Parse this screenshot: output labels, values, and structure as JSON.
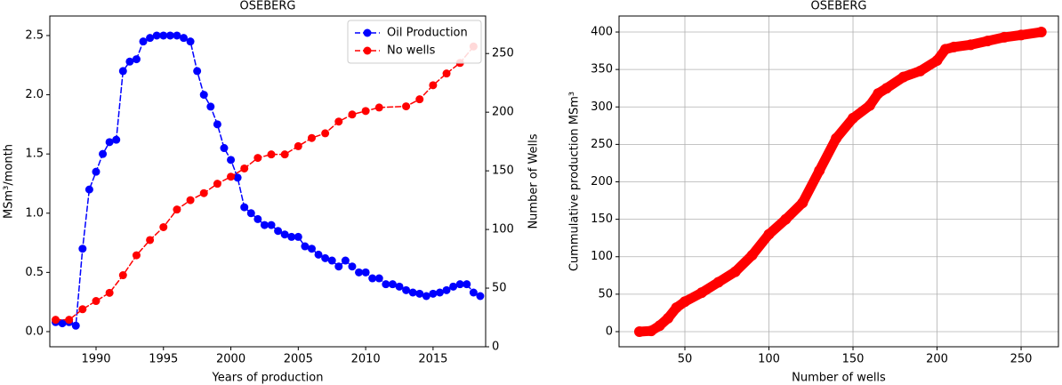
{
  "chart_data": [
    {
      "type": "line",
      "title": "OSEBERG",
      "xlabel": "Years of production",
      "ylabel": "MSm³/month",
      "y2label": "Number of Wells",
      "xlim": [
        1986.57,
        2018.9
      ],
      "xticks": [
        1990,
        1995,
        2000,
        2005,
        2010,
        2015
      ],
      "ylim": [
        -0.128,
        2.665
      ],
      "yticks": [
        {
          "value": 0,
          "label": "0.0"
        },
        {
          "value": 0.5,
          "label": "0.5"
        },
        {
          "value": 1,
          "label": "1.0"
        },
        {
          "value": 1.5,
          "label": "1.5"
        },
        {
          "value": 2,
          "label": "2.0"
        },
        {
          "value": 2.5,
          "label": "2.5"
        }
      ],
      "y2lim": [
        0,
        282
      ],
      "y2ticks": [
        0,
        50,
        100,
        150,
        200,
        250
      ],
      "grid": false,
      "legend": "upper right",
      "series": [
        {
          "name": "Oil Production",
          "color": "#0000ff",
          "linestyle": "dashed",
          "linewidth": 1.5,
          "x": [
            1987,
            1987.5,
            1988,
            1988.5,
            1989,
            1989.5,
            1990,
            1990.5,
            1991,
            1991.5,
            1992,
            1992.5,
            1993,
            1993.5,
            1994,
            1994.5,
            1995,
            1995.5,
            1996,
            1996.5,
            1997,
            1997.5,
            1998,
            1998.5,
            1999,
            1999.5,
            2000,
            2000.5,
            2001,
            2001.5,
            2002,
            2002.5,
            2003,
            2003.5,
            2004,
            2004.5,
            2005,
            2005.5,
            2006,
            2006.5,
            2007,
            2007.5,
            2008,
            2008.5,
            2009,
            2009.5,
            2010,
            2010.5,
            2011,
            2011.5,
            2012,
            2012.5,
            2013,
            2013.5,
            2014,
            2014.5,
            2015,
            2015.5,
            2016,
            2016.5,
            2017,
            2017.5,
            2018,
            2018.5
          ],
          "values": [
            0.08,
            0.07,
            0.08,
            0.05,
            0.7,
            1.2,
            1.35,
            1.5,
            1.6,
            1.62,
            2.2,
            2.28,
            2.3,
            2.45,
            2.48,
            2.5,
            2.5,
            2.5,
            2.5,
            2.48,
            2.45,
            2.2,
            2.0,
            1.9,
            1.75,
            1.55,
            1.45,
            1.3,
            1.05,
            1.0,
            0.95,
            0.9,
            0.9,
            0.85,
            0.82,
            0.8,
            0.8,
            0.72,
            0.7,
            0.65,
            0.62,
            0.6,
            0.55,
            0.6,
            0.55,
            0.5,
            0.5,
            0.45,
            0.45,
            0.4,
            0.4,
            0.38,
            0.35,
            0.33,
            0.32,
            0.3,
            0.32,
            0.33,
            0.35,
            0.38,
            0.4,
            0.4,
            0.33,
            0.3
          ]
        },
        {
          "name": "No wells",
          "color": "#ff0000",
          "linestyle": "dashed",
          "linewidth": 1.5,
          "axis": "y2",
          "x": [
            1987,
            1988,
            1989,
            1990,
            1991,
            1992,
            1993,
            1994,
            1995,
            1996,
            1997,
            1998,
            1999,
            2000,
            2001,
            2002,
            2003,
            2004,
            2005,
            2006,
            2007,
            2008,
            2009,
            2010,
            2011,
            2013,
            2014,
            2015,
            2016,
            2017,
            2018
          ],
          "values": [
            23,
            23,
            32,
            39,
            46,
            61,
            78,
            91,
            102,
            117,
            125,
            131,
            139,
            145,
            152,
            161,
            164,
            164,
            171,
            178,
            182,
            192,
            198,
            201,
            204,
            205,
            211,
            223,
            233,
            242,
            256
          ]
        }
      ]
    },
    {
      "type": "line",
      "title": "OSEBERG",
      "xlabel": "Number of wells",
      "ylabel": "Cummulative production MSm³",
      "xlim": [
        10.85,
        272.2
      ],
      "xticks": [
        50,
        100,
        150,
        200,
        250
      ],
      "ylim": [
        -20.2,
        421.4
      ],
      "yticks": [
        0,
        50,
        100,
        150,
        200,
        250,
        300,
        350,
        400
      ],
      "grid": true,
      "series": [
        {
          "color": "#ff0000",
          "linestyle": "solid",
          "linewidth": 11,
          "x": [
            23,
            30,
            35,
            40,
            45,
            50,
            60,
            70,
            80,
            90,
            100,
            110,
            120,
            130,
            140,
            150,
            160,
            165,
            170,
            180,
            190,
            200,
            205,
            210,
            220,
            230,
            240,
            250,
            262
          ],
          "values": [
            0,
            1,
            8,
            18,
            32,
            40,
            52,
            66,
            80,
            102,
            130,
            150,
            172,
            215,
            258,
            285,
            302,
            318,
            325,
            340,
            348,
            362,
            377,
            380,
            383,
            388,
            393,
            396,
            400
          ]
        }
      ]
    }
  ]
}
